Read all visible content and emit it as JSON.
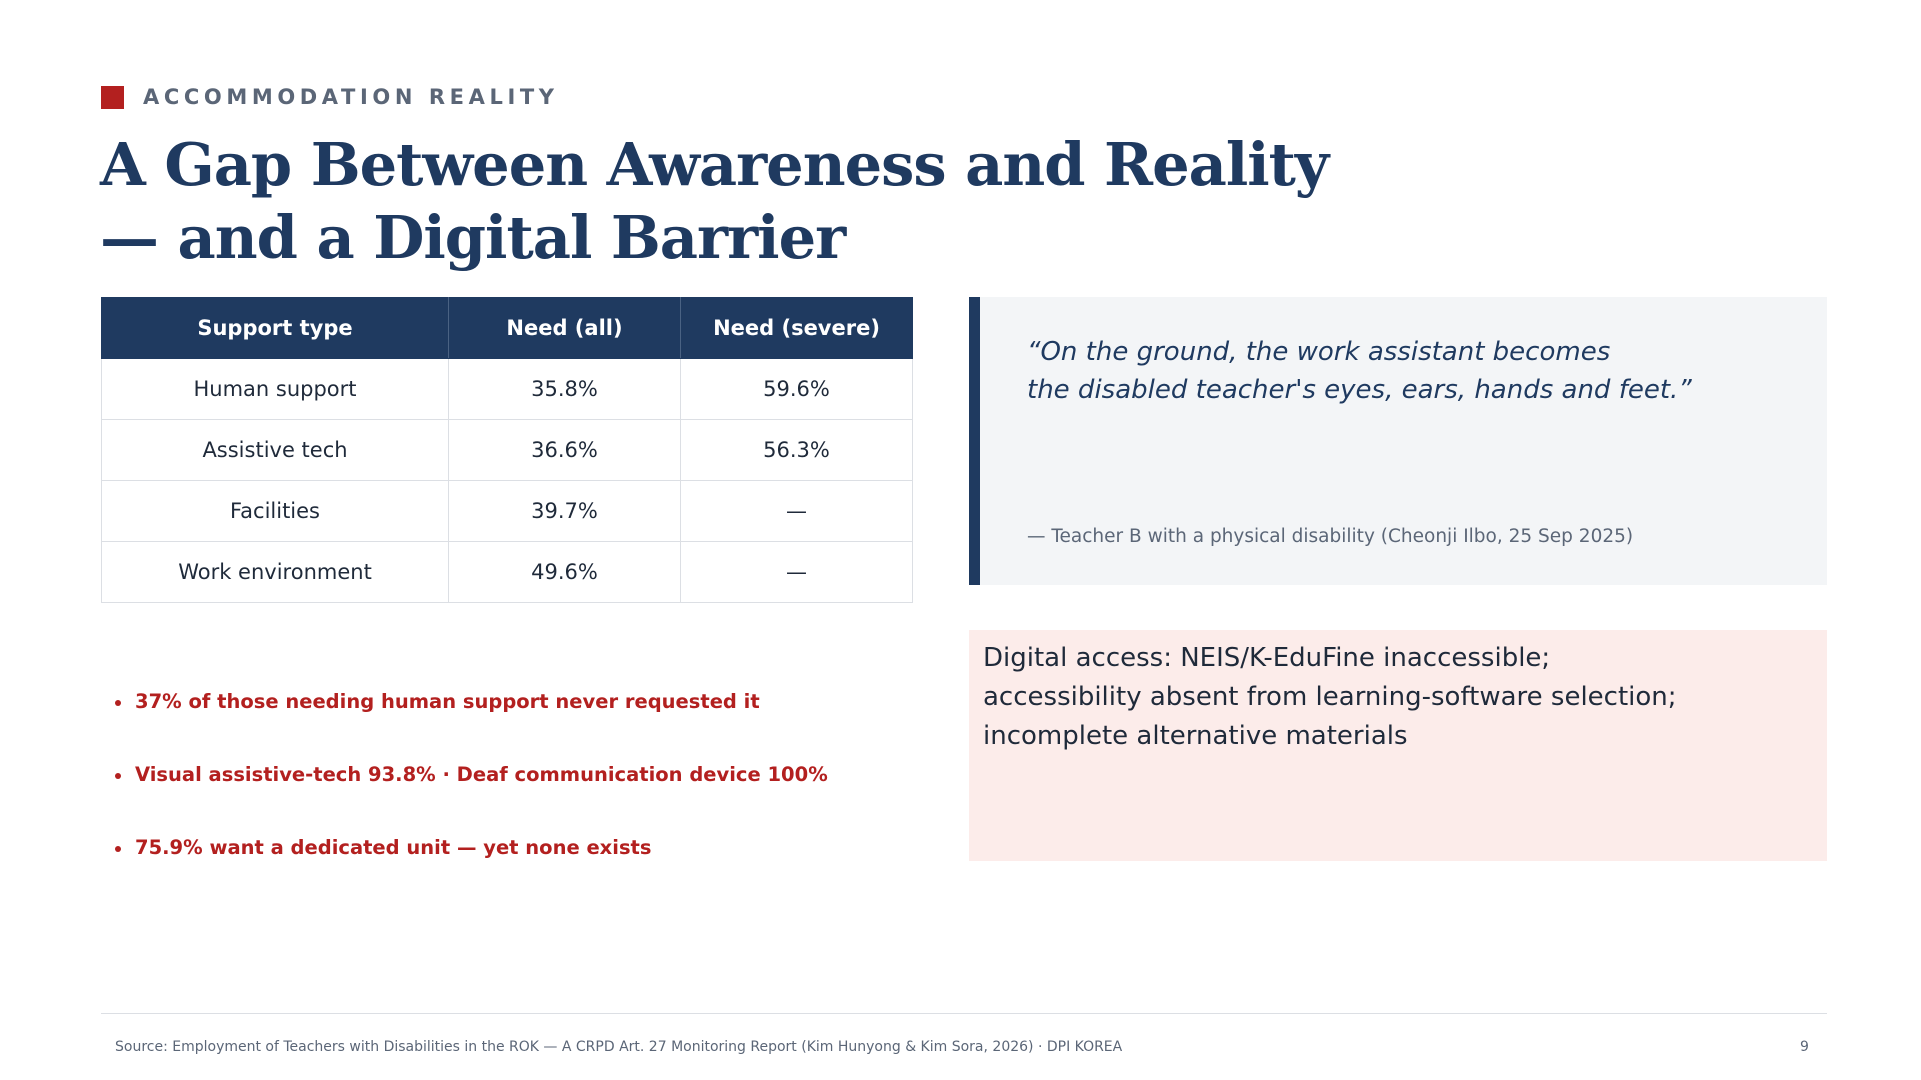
{
  "eyebrow": "ACCOMMODATION REALITY",
  "title": {
    "line1": "A Gap Between Awareness and Reality",
    "line2": "— and a Digital Barrier"
  },
  "table": {
    "headers": [
      "Support type",
      "Need (all)",
      "Need (severe)"
    ],
    "rows": [
      [
        "Human support",
        "35.8%",
        "59.6%"
      ],
      [
        "Assistive tech",
        "36.6%",
        "56.3%"
      ],
      [
        "Facilities",
        "39.7%",
        "—"
      ],
      [
        "Work environment",
        "49.6%",
        "—"
      ]
    ]
  },
  "bullets": [
    "37% of those needing human support never requested it",
    "Visual assistive-tech 93.8% · Deaf communication device 100%",
    "75.9% want a dedicated unit — yet none exists"
  ],
  "quote": {
    "line1": "“On the ground, the work assistant becomes",
    "line2": "the disabled teacher's eyes, ears, hands and feet.”",
    "attribution": "— Teacher B with a physical disability (Cheonji Ilbo, 25 Sep 2025)"
  },
  "digital": {
    "line1": "Digital access: NEIS/K-EduFine inaccessible;",
    "line2": "accessibility absent from learning-software selection;",
    "line3": "incomplete alternative materials"
  },
  "footer": {
    "source": "Source: Employment of Teachers with Disabilities in the ROK — A CRPD Art. 27 Monitoring Report (Kim Hunyong & Kim Sora, 2026) · DPI KOREA",
    "page": "9"
  },
  "colors": {
    "navy": "#1f3a60",
    "accent_red": "#b3201f",
    "quote_bg": "#f3f5f7",
    "digital_bg": "#fcecea"
  }
}
